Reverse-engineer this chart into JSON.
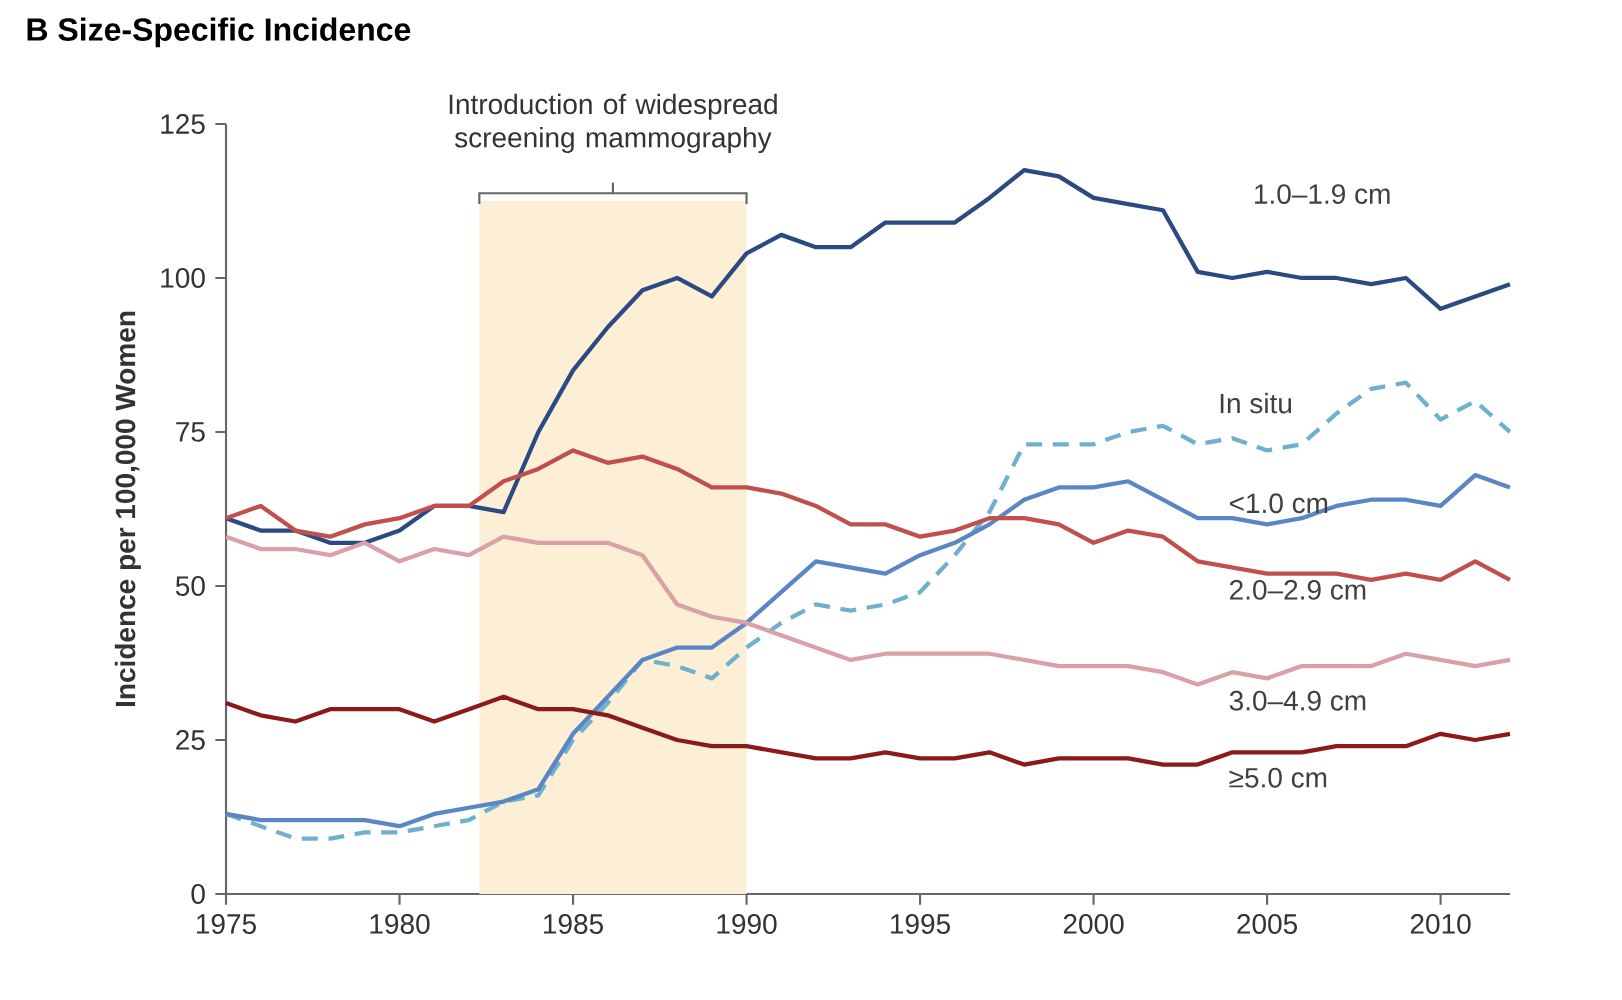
{
  "chart_data": {
    "type": "line",
    "title": "B  Size-Specific Incidence",
    "ylabel": "Incidence per 100,000 Women",
    "x": [
      1975,
      1976,
      1977,
      1978,
      1979,
      1980,
      1981,
      1982,
      1983,
      1984,
      1985,
      1986,
      1987,
      1988,
      1989,
      1990,
      1991,
      1992,
      1993,
      1994,
      1995,
      1996,
      1997,
      1998,
      1999,
      2000,
      2001,
      2002,
      2003,
      2004,
      2005,
      2006,
      2007,
      2008,
      2009,
      2010,
      2011,
      2012
    ],
    "series": [
      {
        "name": "1.0–1.9 cm",
        "color": "#2c4a82",
        "values": [
          61,
          59,
          59,
          57,
          57,
          59,
          63,
          63,
          62,
          75,
          85,
          92,
          98,
          100,
          97,
          104,
          107,
          105,
          105,
          109,
          109,
          109,
          113,
          117.5,
          116.5,
          113,
          112,
          111,
          101,
          100,
          101,
          100,
          100,
          99,
          100,
          95,
          97,
          99
        ]
      },
      {
        "name": "In situ",
        "color": "#6fb0cf",
        "line_style": "dashed",
        "values": [
          13,
          11,
          9,
          9,
          10,
          10,
          11,
          12,
          15,
          16,
          25,
          31,
          38,
          37,
          35,
          40,
          44,
          47,
          46,
          47,
          49,
          55,
          62,
          73,
          73,
          73,
          75,
          76,
          73,
          74,
          72,
          73,
          78,
          82,
          83,
          77,
          80,
          75
        ]
      },
      {
        "name": "<1.0 cm",
        "color": "#5b86c4",
        "values": [
          13,
          12,
          12,
          12,
          12,
          11,
          13,
          14,
          15,
          17,
          26,
          32,
          38,
          40,
          40,
          44,
          49,
          54,
          53,
          52,
          55,
          57,
          60,
          64,
          66,
          66,
          67,
          64,
          61,
          61,
          60,
          61,
          63,
          64,
          64,
          63,
          68,
          66
        ]
      },
      {
        "name": "2.0–2.9 cm",
        "color": "#c0504d",
        "values": [
          61,
          63,
          59,
          58,
          60,
          61,
          63,
          63,
          67,
          69,
          72,
          70,
          71,
          69,
          66,
          66,
          65,
          63,
          60,
          60,
          58,
          59,
          61,
          61,
          60,
          57,
          59,
          58,
          54,
          53,
          52,
          52,
          52,
          51,
          52,
          51,
          54,
          51
        ]
      },
      {
        "name": "3.0–4.9 cm",
        "color": "#d9a0a8",
        "values": [
          58,
          56,
          56,
          55,
          57,
          54,
          56,
          55,
          58,
          57,
          57,
          57,
          55,
          47,
          45,
          44,
          42,
          40,
          38,
          39,
          39,
          39,
          39,
          38,
          37,
          37,
          37,
          36,
          34,
          36,
          35,
          37,
          37,
          37,
          39,
          38,
          37,
          38
        ]
      },
      {
        "name": "≥5.0 cm",
        "color": "#8b1a1a",
        "values": [
          31,
          29,
          28,
          30,
          30,
          30,
          28,
          30,
          32,
          30,
          30,
          29,
          27,
          25,
          24,
          24,
          23,
          22,
          22,
          23,
          22,
          22,
          23,
          21,
          22,
          22,
          22,
          21,
          21,
          23,
          23,
          23,
          24,
          24,
          24,
          26,
          25,
          26
        ]
      }
    ],
    "bands": [
      {
        "axis": "x",
        "from": 1982.3,
        "to": 1990,
        "label": "Introduction of widespread screening mammography",
        "color": "#fcefd6"
      }
    ],
    "xlim": [
      1975,
      2012
    ],
    "xticks": [
      1975,
      1980,
      1985,
      1990,
      1995,
      2000,
      2005,
      2010
    ],
    "ylim": [
      0,
      125
    ],
    "yticks": [
      0,
      25,
      50,
      75,
      100,
      125
    ],
    "grid": false
  }
}
